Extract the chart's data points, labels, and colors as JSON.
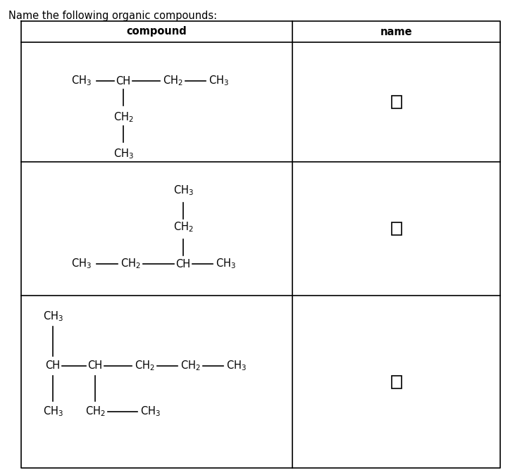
{
  "title": "Name the following organic compounds:",
  "col1_header": "compound",
  "col2_header": "name",
  "background": "#ffffff",
  "text_color": "#000000",
  "font_size": 10.5,
  "title_font_size": 10.5,
  "figsize": [
    7.31,
    6.75
  ],
  "dpi": 100
}
